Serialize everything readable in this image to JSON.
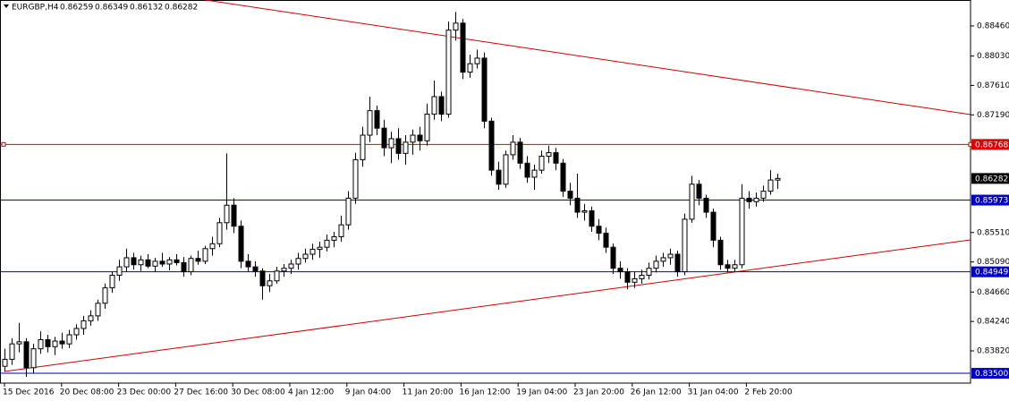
{
  "chart_data": {
    "type": "candlestick",
    "symbol": "EURGBP,H4",
    "ylim": [
      0.8336,
      0.8883
    ],
    "yticks": [
      {
        "value": 0.8846,
        "label": "0.88460"
      },
      {
        "value": 0.8803,
        "label": "0.88030"
      },
      {
        "value": 0.8761,
        "label": "0.87610"
      },
      {
        "value": 0.8719,
        "label": "0.87190"
      },
      {
        "value": 0.8551,
        "label": "0.85510"
      },
      {
        "value": 0.8509,
        "label": "0.85090"
      },
      {
        "value": 0.8466,
        "label": "0.84660"
      },
      {
        "value": 0.8424,
        "label": "0.84240"
      },
      {
        "value": 0.8382,
        "label": "0.83820"
      }
    ],
    "x_labels": [
      "15 Dec 2016",
      "20 Dec 08:00",
      "23 Dec 00:00",
      "27 Dec 16:00",
      "30 Dec 08:00",
      "4 Jan 12:00",
      "9 Jan 04:00",
      "11 Jan 20:00",
      "16 Jan 12:00",
      "19 Jan 04:00",
      "23 Jan 20:00",
      "26 Jan 12:00",
      "31 Jan 04:00",
      "2 Feb 20:00"
    ],
    "levels": [
      {
        "value": 0.86768,
        "color": "#e00000"
      },
      {
        "value": 0.85973,
        "color": "#0000c8"
      },
      {
        "value": 0.84949,
        "color": "#0000c8"
      },
      {
        "value": 0.835,
        "label": "0.83500",
        "color": "#0000c8"
      }
    ],
    "candles": [
      [
        0.836,
        0.8385,
        0.8352,
        0.837
      ],
      [
        0.837,
        0.84,
        0.8362,
        0.8392
      ],
      [
        0.8392,
        0.8422,
        0.838,
        0.8395
      ],
      [
        0.8395,
        0.84,
        0.8345,
        0.8358
      ],
      [
        0.8358,
        0.8392,
        0.835,
        0.8385
      ],
      [
        0.8385,
        0.841,
        0.8378,
        0.8398
      ],
      [
        0.8398,
        0.8405,
        0.838,
        0.8388
      ],
      [
        0.8388,
        0.8402,
        0.8376,
        0.8396
      ],
      [
        0.8396,
        0.8408,
        0.8385,
        0.8392
      ],
      [
        0.8392,
        0.8412,
        0.8386,
        0.8405
      ],
      [
        0.8405,
        0.842,
        0.8398,
        0.8414
      ],
      [
        0.8414,
        0.8432,
        0.8405,
        0.8425
      ],
      [
        0.8425,
        0.844,
        0.8418,
        0.8432
      ],
      [
        0.8432,
        0.8455,
        0.8425,
        0.845
      ],
      [
        0.845,
        0.8478,
        0.8442,
        0.8472
      ],
      [
        0.8472,
        0.8495,
        0.8465,
        0.849
      ],
      [
        0.849,
        0.8512,
        0.8482,
        0.8502
      ],
      [
        0.8502,
        0.8528,
        0.8495,
        0.8515
      ],
      [
        0.8515,
        0.8522,
        0.8498,
        0.8505
      ],
      [
        0.8505,
        0.8518,
        0.8496,
        0.8512
      ],
      [
        0.8512,
        0.852,
        0.85,
        0.8503
      ],
      [
        0.8503,
        0.8515,
        0.8495,
        0.851
      ],
      [
        0.851,
        0.8522,
        0.8502,
        0.8506
      ],
      [
        0.8506,
        0.8516,
        0.8497,
        0.8512
      ],
      [
        0.8512,
        0.852,
        0.8504,
        0.8508
      ],
      [
        0.8508,
        0.8516,
        0.8488,
        0.8495
      ],
      [
        0.8495,
        0.8518,
        0.849,
        0.8514
      ],
      [
        0.8514,
        0.8525,
        0.8505,
        0.851
      ],
      [
        0.851,
        0.8532,
        0.8506,
        0.8528
      ],
      [
        0.8528,
        0.8545,
        0.8518,
        0.8535
      ],
      [
        0.8535,
        0.8572,
        0.853,
        0.8565
      ],
      [
        0.8565,
        0.8664,
        0.8555,
        0.859
      ],
      [
        0.859,
        0.86,
        0.855,
        0.856
      ],
      [
        0.856,
        0.8568,
        0.85,
        0.851
      ],
      [
        0.851,
        0.852,
        0.8495,
        0.8502
      ],
      [
        0.8502,
        0.851,
        0.8488,
        0.8496
      ],
      [
        0.8496,
        0.85,
        0.8455,
        0.8475
      ],
      [
        0.8475,
        0.8492,
        0.8466,
        0.8482
      ],
      [
        0.8482,
        0.8502,
        0.8478,
        0.8496
      ],
      [
        0.8496,
        0.8506,
        0.8488,
        0.85
      ],
      [
        0.85,
        0.8512,
        0.8492,
        0.8506
      ],
      [
        0.8506,
        0.8522,
        0.8498,
        0.8514
      ],
      [
        0.8514,
        0.8528,
        0.8508,
        0.852
      ],
      [
        0.852,
        0.8535,
        0.8512,
        0.8527
      ],
      [
        0.8527,
        0.8538,
        0.8515,
        0.853
      ],
      [
        0.853,
        0.8548,
        0.8524,
        0.854
      ],
      [
        0.854,
        0.8552,
        0.853,
        0.8545
      ],
      [
        0.8545,
        0.8575,
        0.8538,
        0.8562
      ],
      [
        0.8562,
        0.861,
        0.8555,
        0.86
      ],
      [
        0.86,
        0.8665,
        0.8592,
        0.8655
      ],
      [
        0.8655,
        0.8702,
        0.8645,
        0.869
      ],
      [
        0.869,
        0.8745,
        0.868,
        0.8725
      ],
      [
        0.8725,
        0.8732,
        0.869,
        0.87
      ],
      [
        0.87,
        0.8712,
        0.866,
        0.8672
      ],
      [
        0.8672,
        0.8695,
        0.865,
        0.8685
      ],
      [
        0.8685,
        0.87,
        0.8655,
        0.8664
      ],
      [
        0.8664,
        0.869,
        0.8648,
        0.868
      ],
      [
        0.868,
        0.8698,
        0.8662,
        0.869
      ],
      [
        0.869,
        0.8702,
        0.8668,
        0.8682
      ],
      [
        0.8682,
        0.8735,
        0.8675,
        0.872
      ],
      [
        0.872,
        0.8768,
        0.8712,
        0.8745
      ],
      [
        0.8745,
        0.8752,
        0.871,
        0.872
      ],
      [
        0.872,
        0.8852,
        0.8715,
        0.884
      ],
      [
        0.884,
        0.8866,
        0.8825,
        0.885
      ],
      [
        0.885,
        0.8856,
        0.877,
        0.878
      ],
      [
        0.878,
        0.8805,
        0.8772,
        0.8792
      ],
      [
        0.8792,
        0.8812,
        0.8785,
        0.88
      ],
      [
        0.88,
        0.8808,
        0.87,
        0.871
      ],
      [
        0.871,
        0.8715,
        0.8632,
        0.864
      ],
      [
        0.864,
        0.8652,
        0.8612,
        0.862
      ],
      [
        0.862,
        0.8668,
        0.8615,
        0.8662
      ],
      [
        0.8662,
        0.869,
        0.8655,
        0.868
      ],
      [
        0.868,
        0.8686,
        0.8642,
        0.865
      ],
      [
        0.865,
        0.866,
        0.8622,
        0.863
      ],
      [
        0.863,
        0.8648,
        0.8612,
        0.864
      ],
      [
        0.864,
        0.8668,
        0.8635,
        0.866
      ],
      [
        0.866,
        0.8675,
        0.865,
        0.8665
      ],
      [
        0.8665,
        0.8672,
        0.864,
        0.865
      ],
      [
        0.865,
        0.8656,
        0.8602,
        0.861
      ],
      [
        0.861,
        0.8622,
        0.859,
        0.86
      ],
      [
        0.86,
        0.8635,
        0.8572,
        0.858
      ],
      [
        0.858,
        0.8592,
        0.8568,
        0.8582
      ],
      [
        0.8582,
        0.8588,
        0.8552,
        0.856
      ],
      [
        0.856,
        0.857,
        0.854,
        0.855
      ],
      [
        0.855,
        0.8558,
        0.8522,
        0.853
      ],
      [
        0.853,
        0.8535,
        0.8492,
        0.85
      ],
      [
        0.85,
        0.851,
        0.8485,
        0.8495
      ],
      [
        0.8495,
        0.85,
        0.847,
        0.848
      ],
      [
        0.848,
        0.8495,
        0.8472,
        0.8485
      ],
      [
        0.8485,
        0.8498,
        0.8478,
        0.849
      ],
      [
        0.849,
        0.8508,
        0.8484,
        0.85
      ],
      [
        0.85,
        0.8518,
        0.8494,
        0.851
      ],
      [
        0.851,
        0.8522,
        0.8502,
        0.8515
      ],
      [
        0.8515,
        0.8528,
        0.8505,
        0.852
      ],
      [
        0.852,
        0.8525,
        0.8488,
        0.8495
      ],
      [
        0.8495,
        0.8578,
        0.849,
        0.857
      ],
      [
        0.857,
        0.8632,
        0.8565,
        0.862
      ],
      [
        0.862,
        0.8626,
        0.859,
        0.86
      ],
      [
        0.86,
        0.8605,
        0.8572,
        0.858
      ],
      [
        0.858,
        0.8585,
        0.853,
        0.854
      ],
      [
        0.854,
        0.8545,
        0.8498,
        0.8505
      ],
      [
        0.8505,
        0.8512,
        0.8494,
        0.85
      ],
      [
        0.85,
        0.8512,
        0.8495,
        0.8505
      ],
      [
        0.8505,
        0.862,
        0.85,
        0.86
      ],
      [
        0.86,
        0.861,
        0.8585,
        0.8595
      ],
      [
        0.8595,
        0.8608,
        0.8588,
        0.86
      ],
      [
        0.86,
        0.8618,
        0.8595,
        0.861
      ],
      [
        0.861,
        0.864,
        0.8605,
        0.8626
      ],
      [
        0.86259,
        0.86349,
        0.86132,
        0.86282
      ]
    ]
  }
}
